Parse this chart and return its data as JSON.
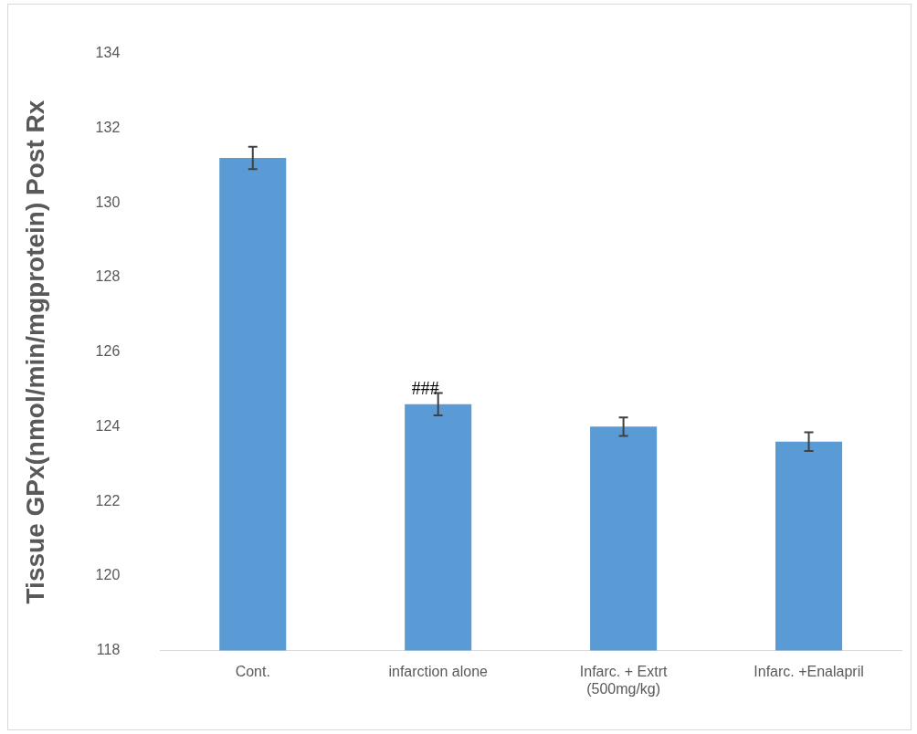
{
  "chart_data": {
    "type": "bar",
    "ylabel": "Tissue GPx(nmol/min/mgprotein) Post Rx",
    "categories": [
      "Cont.",
      "infarction alone",
      "Infarc. + Extrt (500mg/kg)",
      "Infarc. +Enalapril"
    ],
    "values": [
      131.2,
      124.6,
      124.0,
      123.6
    ],
    "errors": [
      0.3,
      0.3,
      0.25,
      0.25
    ],
    "color": "#5b9bd5",
    "ylim": [
      118,
      134
    ],
    "yticks": [
      118,
      120,
      122,
      124,
      126,
      128,
      130,
      132,
      134
    ],
    "grid": false,
    "legend": false,
    "annotations": [
      {
        "text": "###",
        "x": "infarction alone",
        "y": 124.9
      }
    ]
  }
}
